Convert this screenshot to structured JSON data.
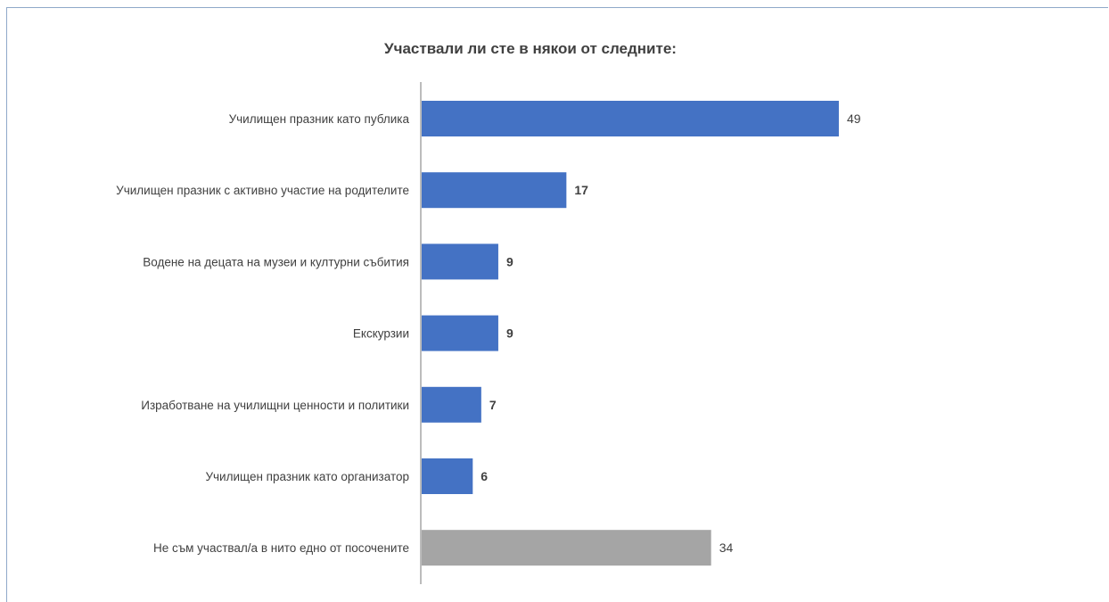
{
  "chart_data": {
    "type": "bar",
    "orientation": "horizontal",
    "title": "Участвали ли сте в някои от следните:",
    "xlabel": "",
    "ylabel": "",
    "categories": [
      "Училищен празник като публика",
      "Училищен празник с активно участие на родителите",
      "Водене на децата на музеи и културни събития",
      "Екскурзии",
      "Изработване на училищни ценности и политики",
      "Училищен празник като организатор",
      "Не съм участвал/а в нито едно от посочените"
    ],
    "values": [
      49,
      17,
      9,
      9,
      7,
      6,
      34
    ],
    "value_labels_bold": [
      false,
      true,
      true,
      true,
      true,
      true,
      false
    ],
    "bar_colors": [
      "#4472c4",
      "#4472c4",
      "#4472c4",
      "#4472c4",
      "#4472c4",
      "#4472c4",
      "#a5a5a5"
    ],
    "xlim": [
      0,
      55
    ],
    "grid": false,
    "legend": "none",
    "data_labels": true
  }
}
